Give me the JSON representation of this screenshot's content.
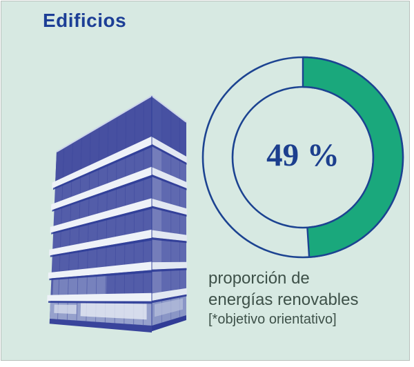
{
  "frame": {
    "background": "#d7e9e2",
    "border_color": "#b9c0bc"
  },
  "header": {
    "title": "Edificios",
    "color": "#1c3e96"
  },
  "building": {
    "description": "blue duotone office building illustration"
  },
  "chart_data": {
    "type": "donut",
    "percent": 49,
    "total": 100,
    "center_label": "49 %",
    "caption": [
      "proporción de",
      "energías renovables",
      "[*objetivo orientativo]"
    ],
    "start_angle_deg": 0,
    "direction": "clockwise",
    "legend_position": "below-right",
    "colors": {
      "fill": "#1aa87c",
      "outline": "#1c4391",
      "track": "transparent",
      "center_label": "#1c3f8e",
      "caption_text": "#3e5149"
    }
  }
}
